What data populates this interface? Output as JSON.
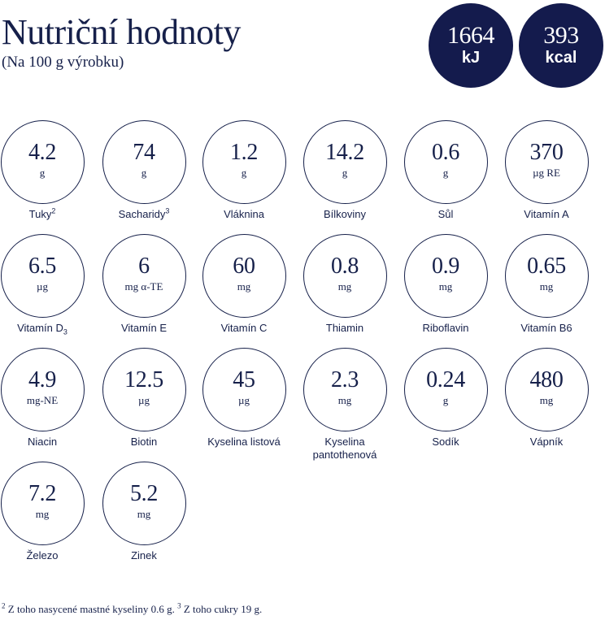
{
  "header": {
    "title": "Nutriční hodnoty",
    "subtitle": "(Na 100 g výrobku)"
  },
  "energy": {
    "kj": {
      "value": "1664",
      "unit": "kJ"
    },
    "kcal": {
      "value": "393",
      "unit": "kcal"
    }
  },
  "nutrients": [
    {
      "value": "4.2",
      "unit": "g",
      "label": "Tuky",
      "sup": "2"
    },
    {
      "value": "74",
      "unit": "g",
      "label": "Sacharidy",
      "sup": "3"
    },
    {
      "value": "1.2",
      "unit": "g",
      "label": "Vláknina"
    },
    {
      "value": "14.2",
      "unit": "g",
      "label": "Bílkoviny"
    },
    {
      "value": "0.6",
      "unit": "g",
      "label": "Sůl"
    },
    {
      "value": "370",
      "unit": "µg RE",
      "label": "Vitamín A"
    },
    {
      "value": "6.5",
      "unit": "µg",
      "label": "Vitamín D",
      "sub": "3"
    },
    {
      "value": "6",
      "unit": "mg α-TE",
      "label": "Vitamín E"
    },
    {
      "value": "60",
      "unit": "mg",
      "label": "Vitamín C"
    },
    {
      "value": "0.8",
      "unit": "mg",
      "label": "Thiamin"
    },
    {
      "value": "0.9",
      "unit": "mg",
      "label": "Riboflavin"
    },
    {
      "value": "0.65",
      "unit": "mg",
      "label": "Vitamín B6"
    },
    {
      "value": "4.9",
      "unit": "mg-NE",
      "label": "Niacin"
    },
    {
      "value": "12.5",
      "unit": "µg",
      "label": "Biotin"
    },
    {
      "value": "45",
      "unit": "µg",
      "label": "Kyselina listová"
    },
    {
      "value": "2.3",
      "unit": "mg",
      "label": "Kyselina pantothenová"
    },
    {
      "value": "0.24",
      "unit": "g",
      "label": "Sodík"
    },
    {
      "value": "480",
      "unit": "mg",
      "label": "Vápník"
    },
    {
      "value": "7.2",
      "unit": "mg",
      "label": "Železo"
    },
    {
      "value": "5.2",
      "unit": "mg",
      "label": "Zinek"
    }
  ],
  "footnote": {
    "sup1": "2",
    "text1": " Z toho nasycené mastné kyseliny 0.6 g. ",
    "sup2": "3",
    "text2": " Z toho cukry 19 g."
  }
}
